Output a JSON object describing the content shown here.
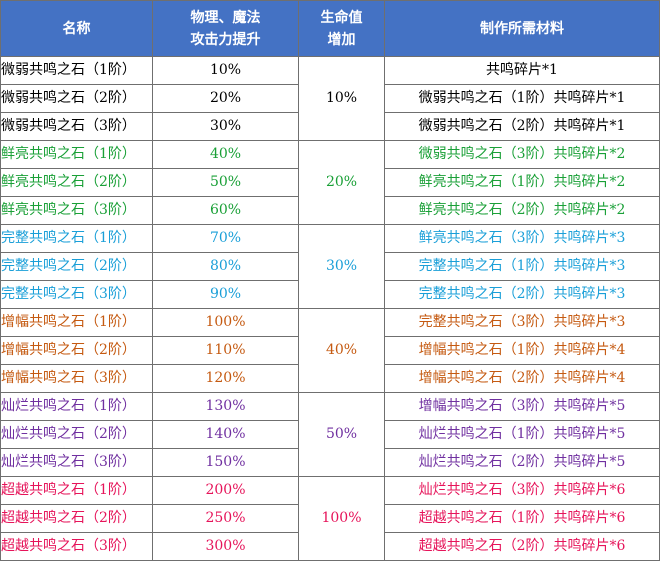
{
  "headers": {
    "name": "名称",
    "boost_line1": "物理、魔法",
    "boost_line2": "攻击力提升",
    "hp_line1": "生命值",
    "hp_line2": "增加",
    "materials": "制作所需材料"
  },
  "tier_colors": [
    "#000000",
    "#1aa037",
    "#1a9fd8",
    "#c55a11",
    "#7030a0",
    "#e6145a"
  ],
  "tiers": [
    {
      "hp": "10%",
      "rows": [
        {
          "name": "微弱共鸣之石（1阶）",
          "boost": "10%",
          "material": "共鸣碎片*1"
        },
        {
          "name": "微弱共鸣之石（2阶）",
          "boost": "20%",
          "material": "微弱共鸣之石（1阶）共鸣碎片*1"
        },
        {
          "name": "微弱共鸣之石（3阶）",
          "boost": "30%",
          "material": "微弱共鸣之石（2阶）共鸣碎片*1"
        }
      ]
    },
    {
      "hp": "20%",
      "rows": [
        {
          "name": "鲜亮共鸣之石（1阶）",
          "boost": "40%",
          "material": "微弱共鸣之石（3阶）共鸣碎片*2"
        },
        {
          "name": "鲜亮共鸣之石（2阶）",
          "boost": "50%",
          "material": "鲜亮共鸣之石（1阶）共鸣碎片*2"
        },
        {
          "name": "鲜亮共鸣之石（3阶）",
          "boost": "60%",
          "material": "鲜亮共鸣之石（2阶）共鸣碎片*2"
        }
      ]
    },
    {
      "hp": "30%",
      "rows": [
        {
          "name": "完整共鸣之石（1阶）",
          "boost": "70%",
          "material": "鲜亮共鸣之石（3阶）共鸣碎片*3"
        },
        {
          "name": "完整共鸣之石（2阶）",
          "boost": "80%",
          "material": "完整共鸣之石（1阶）共鸣碎片*3"
        },
        {
          "name": "完整共鸣之石（3阶）",
          "boost": "90%",
          "material": "完整共鸣之石（2阶）共鸣碎片*3"
        }
      ]
    },
    {
      "hp": "40%",
      "rows": [
        {
          "name": "增幅共鸣之石（1阶）",
          "boost": "100%",
          "material": "完整共鸣之石（3阶）共鸣碎片*3"
        },
        {
          "name": "增幅共鸣之石（2阶）",
          "boost": "110%",
          "material": "增幅共鸣之石（1阶）共鸣碎片*4"
        },
        {
          "name": "增幅共鸣之石（3阶）",
          "boost": "120%",
          "material": "增幅共鸣之石（2阶）共鸣碎片*4"
        }
      ]
    },
    {
      "hp": "50%",
      "rows": [
        {
          "name": "灿烂共鸣之石（1阶）",
          "boost": "130%",
          "material": "增幅共鸣之石（3阶）共鸣碎片*5"
        },
        {
          "name": "灿烂共鸣之石（2阶）",
          "boost": "140%",
          "material": "灿烂共鸣之石（1阶）共鸣碎片*5"
        },
        {
          "name": "灿烂共鸣之石（3阶）",
          "boost": "150%",
          "material": "灿烂共鸣之石（2阶）共鸣碎片*5"
        }
      ]
    },
    {
      "hp": "100%",
      "rows": [
        {
          "name": "超越共鸣之石（1阶）",
          "boost": "200%",
          "material": "灿烂共鸣之石（3阶）共鸣碎片*6"
        },
        {
          "name": "超越共鸣之石（2阶）",
          "boost": "250%",
          "material": "超越共鸣之石（1阶）共鸣碎片*6"
        },
        {
          "name": "超越共鸣之石（3阶）",
          "boost": "300%",
          "material": "超越共鸣之石（2阶）共鸣碎片*6"
        }
      ]
    }
  ]
}
